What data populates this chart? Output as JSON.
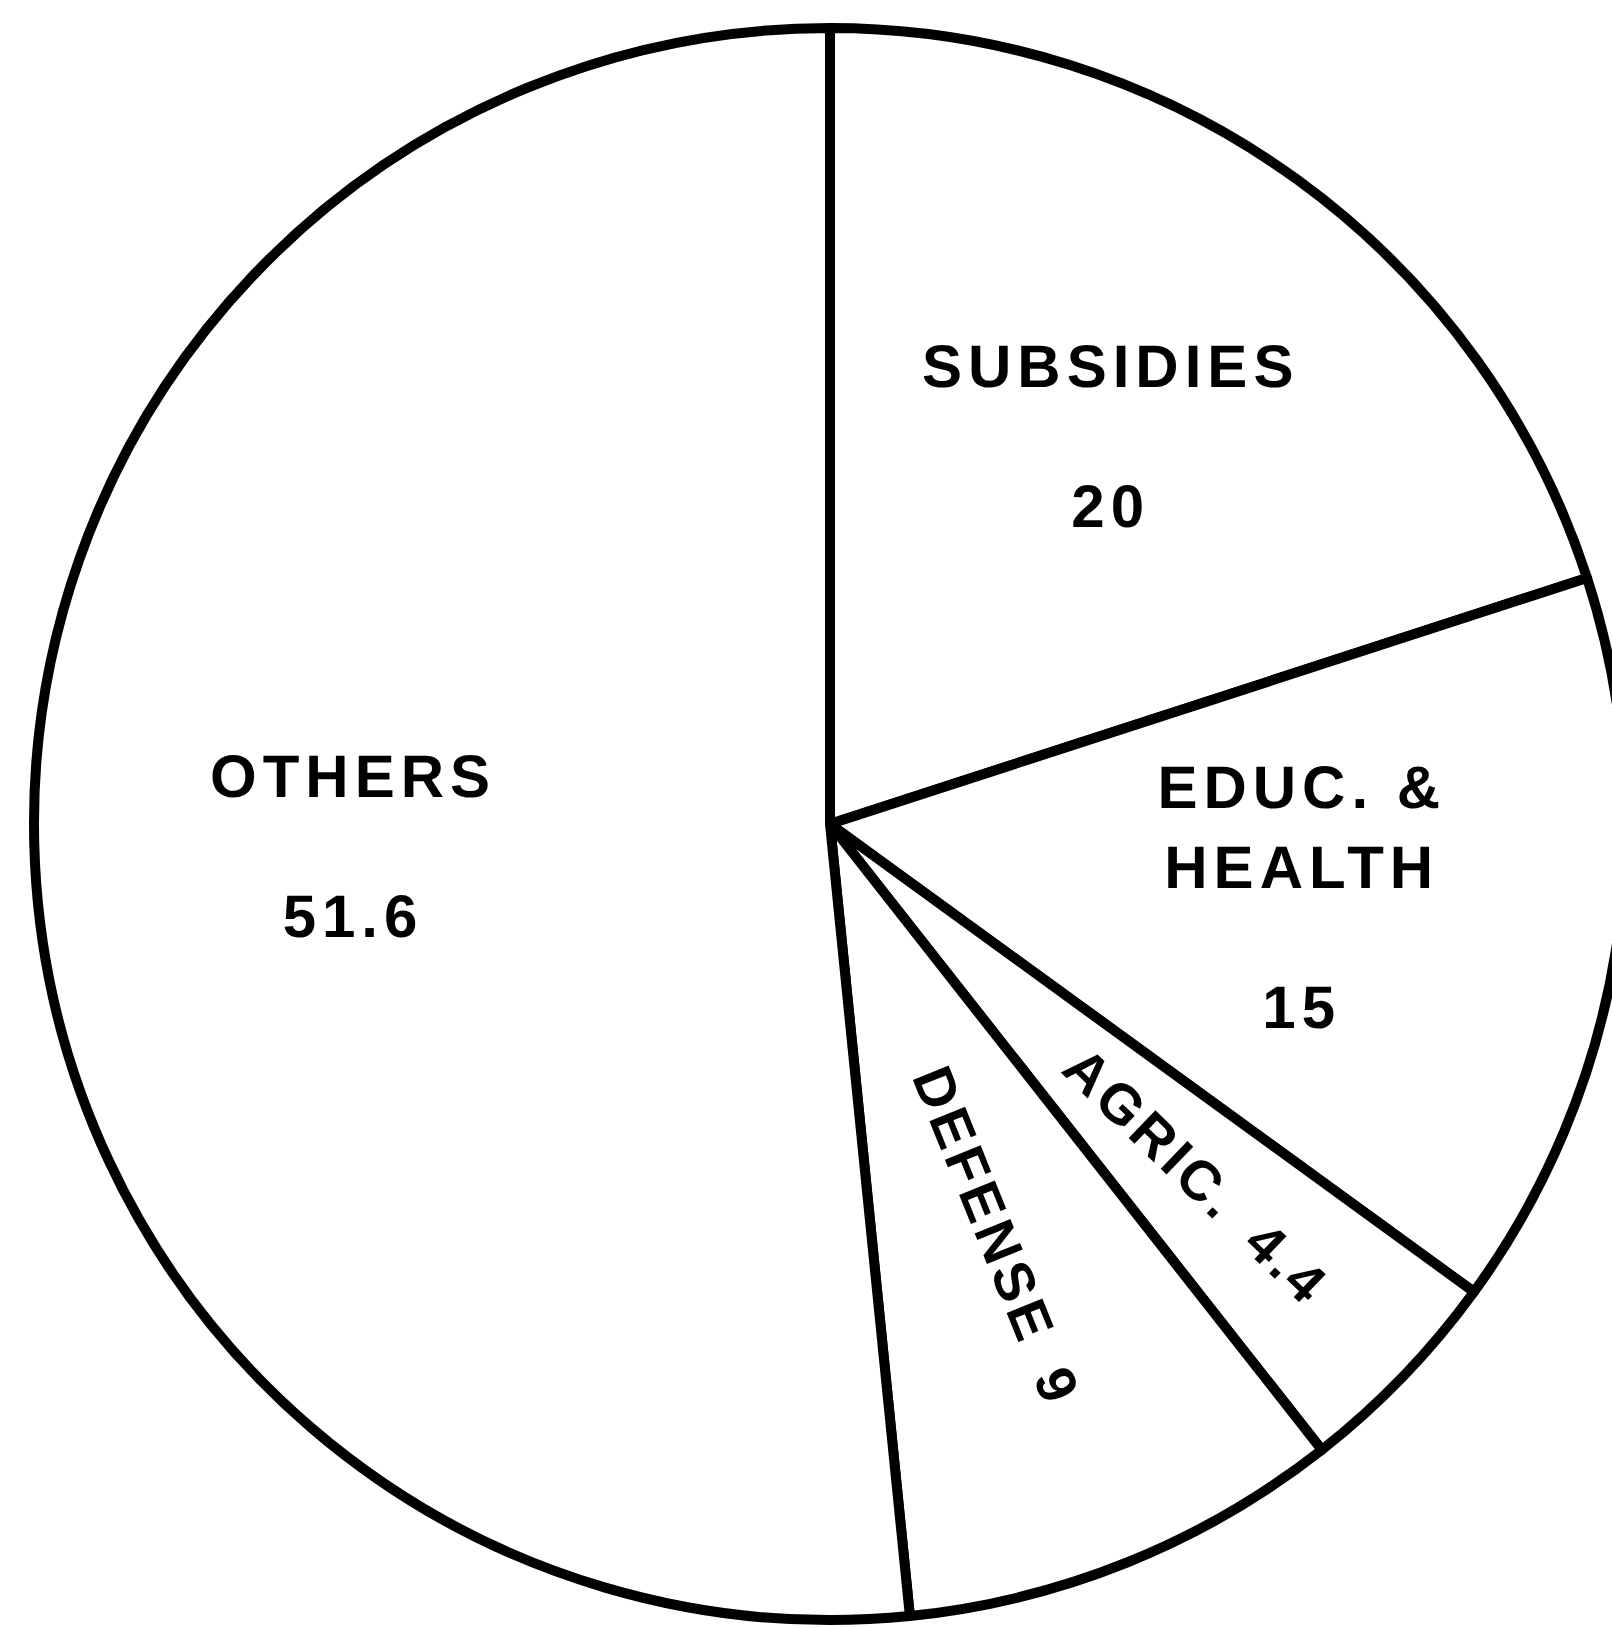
{
  "chart_data": {
    "type": "pie",
    "categories": [
      "SUBSIDIES",
      "EDUC. & HEALTH",
      "AGRIC.",
      "DEFENSE",
      "OTHERS"
    ],
    "values": [
      20,
      15,
      4.4,
      9,
      51.6
    ],
    "colors": [
      "#ffffff",
      "#ffffff",
      "#ffffff",
      "#ffffff",
      "#ffffff"
    ],
    "data_labels": true
  }
}
